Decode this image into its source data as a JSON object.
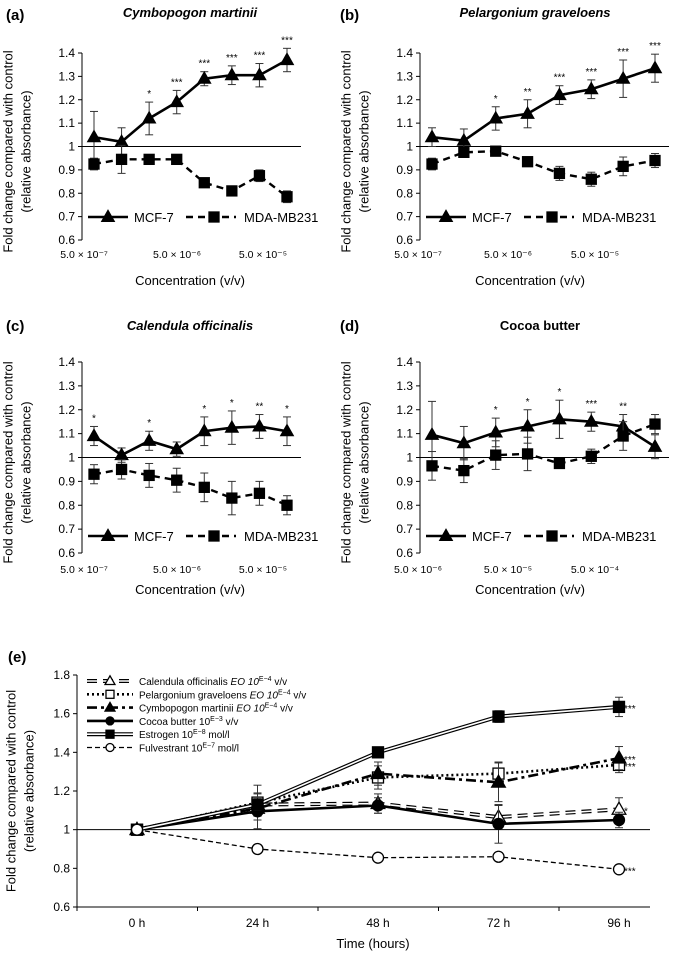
{
  "chart_data": [
    {
      "type": "line",
      "panel_label": "(a)",
      "title": "Cymbopogon martinii",
      "title_italic": true,
      "ylabel_lines": [
        "Fold change compared with control",
        "(relative absorbance)"
      ],
      "xlabel": "Concentration  (v/v)",
      "ylim": [
        0.6,
        1.4
      ],
      "yticks": [
        "0.6",
        "0.7",
        "0.8",
        "0.9",
        "1",
        "1.1",
        "1.2",
        "1.3",
        "1.4"
      ],
      "xtick_labels": [
        {
          "at": 0,
          "text": "5.0 × 10⁻⁷"
        },
        {
          "at": 3.5,
          "text": "5.0 × 10⁻⁶"
        },
        {
          "at": 7,
          "text": "5.0 × 10⁻⁵"
        }
      ],
      "x_index": [
        0,
        1,
        2,
        3,
        4,
        5,
        6,
        7
      ],
      "reference_line": 1,
      "legend": "bottom",
      "series": [
        {
          "name": "MCF-7",
          "marker": "triangle",
          "style": "solid",
          "values": [
            1.04,
            1.02,
            1.12,
            1.19,
            1.29,
            1.305,
            1.305,
            1.37
          ],
          "errors": [
            0.11,
            0.06,
            0.07,
            0.05,
            0.03,
            0.04,
            0.05,
            0.05
          ]
        },
        {
          "name": "MDA-MB231",
          "marker": "square",
          "style": "dashed",
          "values": [
            0.925,
            0.945,
            0.945,
            0.945,
            0.845,
            0.81,
            0.875,
            0.785
          ],
          "errors": [
            0.025,
            0.06,
            0.02,
            0.01,
            0.01,
            0.01,
            0.025,
            0.025
          ]
        }
      ],
      "significance": [
        "",
        "",
        "*",
        "***",
        "***",
        "***",
        "***",
        "***"
      ]
    },
    {
      "type": "line",
      "panel_label": "(b)",
      "title": "Pelargonium graveloens",
      "title_italic": true,
      "ylabel_lines": [
        "Fold change compared with control",
        "(relative absorbance)"
      ],
      "xlabel": "Concentration  (v/v)",
      "ylim": [
        0.6,
        1.4
      ],
      "yticks": [
        "0.6",
        "0.7",
        "0.8",
        "0.9",
        "1",
        "1.1",
        "1.2",
        "1.3",
        "1.4"
      ],
      "xtick_labels": [
        {
          "at": 0,
          "text": "5.0 × 10⁻⁷"
        },
        {
          "at": 3.5,
          "text": "5.0 × 10⁻⁶"
        },
        {
          "at": 7,
          "text": "5.0 × 10⁻⁵"
        }
      ],
      "x_index": [
        0,
        1,
        2,
        3,
        4,
        5,
        6,
        7
      ],
      "reference_line": 1,
      "legend": "bottom",
      "series": [
        {
          "name": "MCF-7",
          "marker": "triangle",
          "style": "solid",
          "values": [
            1.04,
            1.025,
            1.12,
            1.14,
            1.22,
            1.245,
            1.29,
            1.335
          ],
          "errors": [
            0.04,
            0.05,
            0.05,
            0.06,
            0.04,
            0.04,
            0.08,
            0.06
          ]
        },
        {
          "name": "MDA-MB231",
          "marker": "square",
          "style": "dashed",
          "values": [
            0.925,
            0.975,
            0.98,
            0.935,
            0.885,
            0.86,
            0.915,
            0.94
          ],
          "errors": [
            0.025,
            0.02,
            0.01,
            0.01,
            0.03,
            0.03,
            0.04,
            0.03
          ]
        }
      ],
      "significance": [
        "",
        "",
        "*",
        "**",
        "***",
        "***",
        "***",
        "***"
      ]
    },
    {
      "type": "line",
      "panel_label": "(c)",
      "title": "Calendula officinalis",
      "title_italic": true,
      "ylabel_lines": [
        "Fold change compared with control",
        "(relative absorbance)"
      ],
      "xlabel": "Concentration  (v/v)",
      "ylim": [
        0.6,
        1.4
      ],
      "yticks": [
        "0.6",
        "0.7",
        "0.8",
        "0.9",
        "1",
        "1.1",
        "1.2",
        "1.3",
        "1.4"
      ],
      "xtick_labels": [
        {
          "at": 0,
          "text": "5.0 × 10⁻⁷"
        },
        {
          "at": 3.5,
          "text": "5.0 × 10⁻⁶"
        },
        {
          "at": 7,
          "text": "5.0 × 10⁻⁵"
        }
      ],
      "x_index": [
        0,
        1,
        2,
        3,
        4,
        5,
        6,
        7
      ],
      "reference_line": 1,
      "legend": "bottom",
      "series": [
        {
          "name": "MCF-7",
          "marker": "triangle",
          "style": "solid",
          "values": [
            1.09,
            1.01,
            1.07,
            1.035,
            1.11,
            1.125,
            1.13,
            1.11
          ],
          "errors": [
            0.04,
            0.03,
            0.04,
            0.03,
            0.06,
            0.07,
            0.05,
            0.06
          ]
        },
        {
          "name": "MDA-MB231",
          "marker": "square",
          "style": "dashed",
          "values": [
            0.93,
            0.95,
            0.925,
            0.905,
            0.875,
            0.83,
            0.85,
            0.8
          ],
          "errors": [
            0.04,
            0.04,
            0.05,
            0.05,
            0.06,
            0.07,
            0.05,
            0.04
          ]
        }
      ],
      "significance": [
        "*",
        "",
        "*",
        "",
        "*",
        "*",
        "**",
        "*"
      ]
    },
    {
      "type": "line",
      "panel_label": "(d)",
      "title": "Cocoa butter",
      "title_italic": false,
      "ylabel_lines": [
        "Fold change compared with control",
        "(relative absorbance)"
      ],
      "xlabel": "Concentration  (v/v)",
      "ylim": [
        0.6,
        1.4
      ],
      "yticks": [
        "0.6",
        "0.7",
        "0.8",
        "0.9",
        "1",
        "1.1",
        "1.2",
        "1.3",
        "1.4"
      ],
      "xtick_labels": [
        {
          "at": 0,
          "text": "5.0 × 10⁻⁶"
        },
        {
          "at": 3.5,
          "text": "5.0 × 10⁻⁵"
        },
        {
          "at": 7,
          "text": "5.0 × 10⁻⁴"
        }
      ],
      "x_index": [
        0,
        1,
        2,
        3,
        4,
        5,
        6,
        7
      ],
      "reference_line": 1,
      "legend": "bottom",
      "series": [
        {
          "name": "MCF-7",
          "marker": "triangle",
          "style": "solid",
          "values": [
            1.095,
            1.06,
            1.105,
            1.13,
            1.16,
            1.15,
            1.13,
            1.045
          ],
          "errors": [
            0.14,
            0.07,
            0.06,
            0.07,
            0.08,
            0.04,
            0.05,
            0.05
          ]
        },
        {
          "name": "MDA-MB231",
          "marker": "square",
          "style": "dashed",
          "values": [
            0.965,
            0.945,
            1.01,
            1.015,
            0.975,
            1.005,
            1.09,
            1.14
          ],
          "errors": [
            0.06,
            0.05,
            0.06,
            0.07,
            0.01,
            0.03,
            0.06,
            0.04
          ]
        }
      ],
      "significance": [
        "",
        "",
        "*",
        "*",
        "*",
        "***",
        "**",
        ""
      ]
    },
    {
      "type": "line",
      "panel_label": "(e)",
      "title": "",
      "ylabel_lines": [
        "Fold change compared with control",
        "(relative absorbance)"
      ],
      "xlabel": "Time (hours)",
      "categories": [
        "0 h",
        "24 h",
        "48 h",
        "72 h",
        "96 h"
      ],
      "ylim": [
        0.6,
        1.8
      ],
      "yticks": [
        "0.6",
        "0.8",
        "1",
        "1.2",
        "1.4",
        "1.6",
        "1.8"
      ],
      "reference_line": 1,
      "legend": "top-left",
      "series": [
        {
          "name": "Calendula officinalis",
          "sup_label": " EO 10",
          "sup": "E−4",
          "unit": " v/v",
          "marker": "triangle-open",
          "style": "double-dashed",
          "values": [
            1.0,
            1.13,
            1.135,
            1.065,
            1.105
          ],
          "errors": [
            0,
            0.06,
            0.05,
            0.06,
            0.06
          ]
        },
        {
          "name": "Pelargonium graveloens",
          "sup_label": " EO 10",
          "sup": "E−4",
          "unit": " v/v",
          "marker": "square-open",
          "style": "dotted",
          "values": [
            1.0,
            1.14,
            1.27,
            1.29,
            1.335
          ],
          "errors": [
            0,
            0.09,
            0.06,
            0.06,
            0.04
          ]
        },
        {
          "name": "Cymbopogon martinii",
          "sup_label": " EO 10",
          "sup": "E−4",
          "unit": "  v/v",
          "marker": "triangle",
          "style": "dashdot",
          "values": [
            1.0,
            1.11,
            1.29,
            1.245,
            1.37
          ],
          "errors": [
            0,
            0.04,
            0.06,
            0.1,
            0.06
          ]
        },
        {
          "name": "Cocoa butter",
          "sup_label": " 10",
          "sup": "E−3",
          "unit": " v/v",
          "marker": "circle",
          "style": "solid",
          "values": [
            1.0,
            1.095,
            1.125,
            1.03,
            1.05
          ],
          "errors": [
            0,
            0.09,
            0.04,
            0.1,
            0.04
          ]
        },
        {
          "name": "Estrogen",
          "sup_label": " 10",
          "sup": "E−8",
          "unit": " mol/l",
          "marker": "square",
          "style": "double",
          "values": [
            1.0,
            1.13,
            1.4,
            1.585,
            1.635
          ],
          "errors": [
            0,
            0.03,
            0.02,
            0.03,
            0.05
          ]
        },
        {
          "name": "Fulvestrant",
          "sup_label": " 10",
          "sup": "E−7",
          "unit": " mol/l",
          "marker": "circle-open",
          "style": "dashed",
          "values": [
            1.0,
            0.9,
            0.855,
            0.86,
            0.795
          ],
          "errors": [
            0,
            0.02,
            0.015,
            0.01,
            0.02
          ]
        }
      ],
      "end_significance": [
        {
          "series": "Estrogen",
          "label": "***"
        },
        {
          "series": "Cymbopogon martinii",
          "label": "***"
        },
        {
          "series": "Pelargonium graveloens",
          "label": "***"
        },
        {
          "series": "Calendula officinalis",
          "label": "*"
        },
        {
          "series": "Fulvestrant",
          "label": "***"
        }
      ]
    }
  ]
}
